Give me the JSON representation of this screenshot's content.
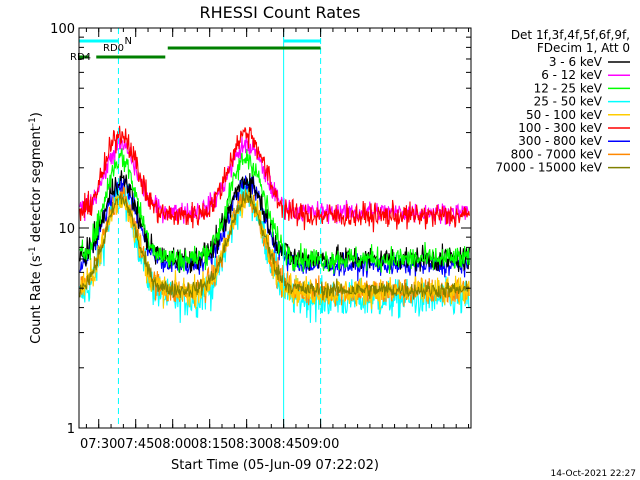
{
  "chart_data": {
    "type": "line",
    "title": "RHESSI Count Rates",
    "xlabel": "Start Time (05-Jun-09 07:22:02)",
    "ylabel_main": "Count Rate (s",
    "ylabel_sup1": "-1",
    "ylabel_mid": " detector segment",
    "ylabel_sup2": "-1",
    "ylabel_end": ")",
    "yscale": "log",
    "ylim": [
      1,
      100
    ],
    "xlim_minutes": [
      442,
      601
    ],
    "x_ticks": [
      {
        "label": "07:30",
        "minute": 450
      },
      {
        "label": "07:45",
        "minute": 465
      },
      {
        "label": "08:00",
        "minute": 480
      },
      {
        "label": "08:15",
        "minute": 495
      },
      {
        "label": "08:30",
        "minute": 510
      },
      {
        "label": "08:45",
        "minute": 525
      },
      {
        "label": "09:00",
        "minute": 540
      }
    ],
    "y_ticks": [
      {
        "label": "1",
        "value": 1
      },
      {
        "label": "10",
        "value": 10
      },
      {
        "label": "100",
        "value": 100
      }
    ],
    "legend_header": [
      "Det 1f,3f,4f,5f,6f,9f,",
      "FDecim 1, Att 0"
    ],
    "series": [
      {
        "name": "3 - 6 keV",
        "color": "#000000",
        "base": 7.0,
        "peak": 17.5,
        "noise": 0.06
      },
      {
        "name": "6 - 12 keV",
        "color": "#ff00ff",
        "base": 12.0,
        "peak": 26.0,
        "noise": 0.05
      },
      {
        "name": "12 - 25 keV",
        "color": "#00ff00",
        "base": 7.0,
        "peak": 22.5,
        "noise": 0.06
      },
      {
        "name": "25 - 50 keV",
        "color": "#00ffff",
        "base": 4.4,
        "peak": 14.5,
        "noise": 0.09
      },
      {
        "name": "50 - 100 keV",
        "color": "#ffcc00",
        "base": 4.8,
        "peak": 14.0,
        "noise": 0.07
      },
      {
        "name": "100 - 300 keV",
        "color": "#ff0000",
        "base": 11.5,
        "peak": 30.0,
        "noise": 0.06
      },
      {
        "name": "300 - 800 keV",
        "color": "#0000ff",
        "base": 6.5,
        "peak": 17.0,
        "noise": 0.05
      },
      {
        "name": "800 - 7000 keV",
        "color": "#ff8800",
        "base": 4.8,
        "peak": 14.5,
        "noise": 0.07
      },
      {
        "name": "7000 - 15000 keV",
        "color": "#808000",
        "base": 4.9,
        "peak": 14.0,
        "noise": 0.04
      }
    ],
    "peaks_minutes": [
      459,
      510
    ],
    "orbit_flags": [
      {
        "label": "N",
        "color": "#00ffff",
        "segments": [
          [
            442,
            458
          ],
          [
            525,
            540
          ]
        ]
      },
      {
        "label": "RD0",
        "color": "#008000",
        "segments": [
          [
            478,
            540
          ]
        ]
      },
      {
        "label": "RD4",
        "color": "#008000",
        "segments": [
          [
            442,
            446
          ],
          [
            449,
            477
          ]
        ]
      }
    ],
    "vlines": [
      {
        "minute": 458,
        "style": "dashed"
      },
      {
        "minute": 525,
        "style": "solid"
      },
      {
        "minute": 540,
        "style": "dashed"
      }
    ]
  },
  "footer_timestamp": "14-Oct-2021 22:27"
}
